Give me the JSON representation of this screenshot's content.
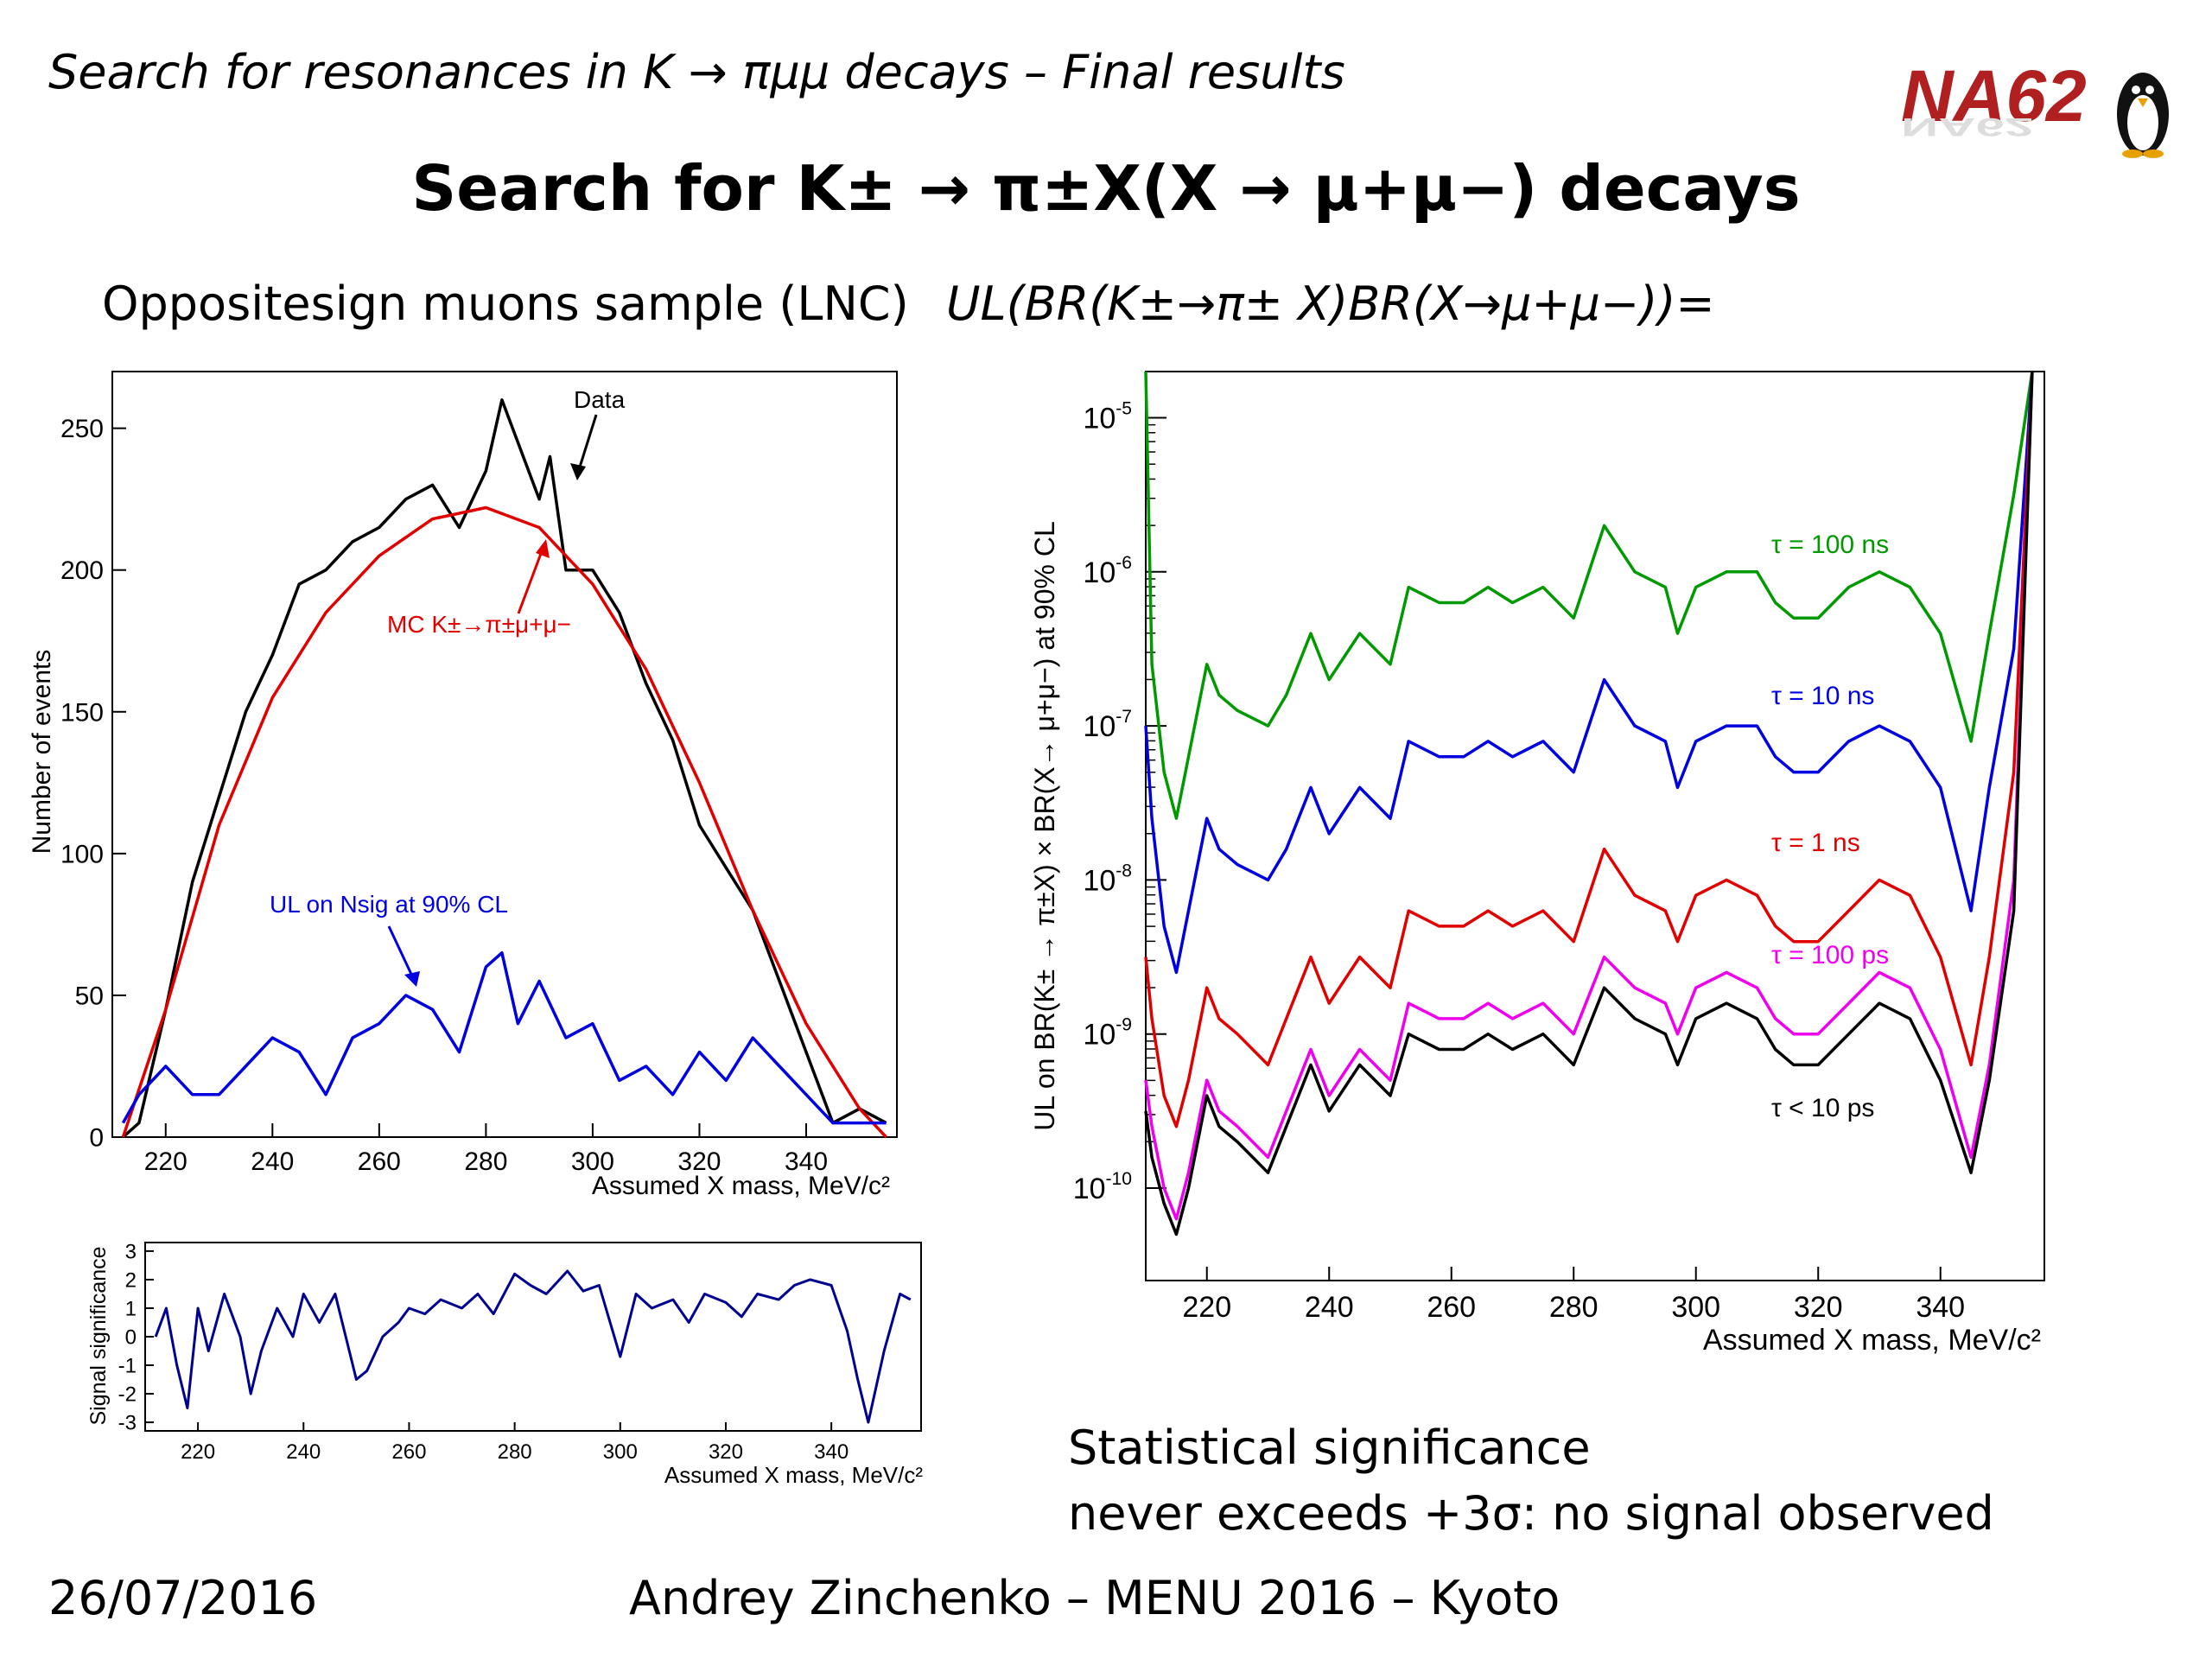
{
  "header": {
    "text": "Search for resonances in K → πμμ decays – Final results"
  },
  "logo": {
    "text": "NA62"
  },
  "title": "Search for K± → π±X(X → μ+μ−) decays",
  "left_caption": "Oppositesign muons sample (LNC)",
  "right_caption": "UL(BR(K±→π± X)BR(X→μ+μ−))=",
  "conclusion": {
    "line1": "Statistical significance",
    "line2": "never exceeds +3σ: no signal observed"
  },
  "footer": {
    "date": "26/07/2016",
    "center": "Andrey Zinchenko – MENU 2016 – Kyoto"
  },
  "colors": {
    "black": "#000000",
    "red": "#e00000",
    "blue": "#0000e0",
    "green": "#009900",
    "magenta": "#ee00ee",
    "navy": "#000090"
  },
  "chart_data": [
    {
      "id": "main",
      "type": "line",
      "xlabel": "Assumed X mass, MeV/c²",
      "ylabel": "Number of events",
      "xlim": [
        210,
        357
      ],
      "ylim": [
        0,
        270
      ],
      "xticks": [
        220,
        240,
        260,
        280,
        300,
        320,
        340
      ],
      "yticks": [
        0,
        50,
        100,
        150,
        200,
        250
      ],
      "annotations": [
        "Data",
        "MC K±→π±μ+μ−",
        "UL on Nsig at 90% CL"
      ],
      "series": [
        {
          "name": "Data",
          "color": "#000000",
          "x": [
            212,
            215,
            220,
            225,
            230,
            235,
            240,
            245,
            250,
            255,
            260,
            265,
            270,
            275,
            280,
            283,
            286,
            290,
            292,
            295,
            300,
            305,
            310,
            315,
            320,
            325,
            330,
            335,
            340,
            345,
            350,
            355
          ],
          "y": [
            0,
            5,
            45,
            90,
            120,
            150,
            170,
            195,
            200,
            210,
            215,
            225,
            230,
            215,
            235,
            260,
            245,
            225,
            240,
            200,
            200,
            185,
            160,
            140,
            110,
            95,
            80,
            55,
            30,
            5,
            10,
            5
          ]
        },
        {
          "name": "MC K±→π±μ+μ−",
          "color": "#e00000",
          "x": [
            212,
            220,
            230,
            240,
            250,
            260,
            270,
            280,
            290,
            300,
            310,
            320,
            330,
            340,
            350,
            355
          ],
          "y": [
            0,
            45,
            110,
            155,
            185,
            205,
            218,
            222,
            215,
            195,
            165,
            125,
            80,
            40,
            10,
            0
          ]
        },
        {
          "name": "UL on Nsig at 90% CL",
          "color": "#0000e0",
          "x": [
            212,
            215,
            220,
            225,
            230,
            235,
            240,
            245,
            250,
            255,
            260,
            265,
            270,
            275,
            280,
            283,
            286,
            290,
            295,
            300,
            305,
            310,
            315,
            320,
            325,
            330,
            335,
            340,
            345,
            350,
            355
          ],
          "y": [
            5,
            15,
            25,
            15,
            15,
            25,
            35,
            30,
            15,
            35,
            40,
            50,
            45,
            30,
            60,
            65,
            40,
            55,
            35,
            40,
            20,
            25,
            15,
            30,
            20,
            35,
            25,
            15,
            5,
            5,
            5
          ]
        }
      ]
    },
    {
      "id": "signif",
      "type": "line",
      "xlabel": "Assumed X mass, MeV/c²",
      "ylabel": "Signal significance",
      "xlim": [
        210,
        357
      ],
      "ylim": [
        -3.3,
        3.3
      ],
      "xticks": [
        220,
        240,
        260,
        280,
        300,
        320,
        340
      ],
      "yticks": [
        -3,
        -2,
        -1,
        0,
        1,
        2,
        3
      ],
      "series": [
        {
          "name": "",
          "color": "#000090",
          "x": [
            212,
            214,
            216,
            218,
            220,
            222,
            225,
            228,
            230,
            232,
            235,
            238,
            240,
            243,
            246,
            250,
            252,
            255,
            258,
            260,
            263,
            266,
            270,
            273,
            276,
            280,
            283,
            286,
            290,
            293,
            296,
            300,
            303,
            306,
            310,
            313,
            316,
            320,
            323,
            326,
            330,
            333,
            336,
            340,
            343,
            345,
            347,
            350,
            353,
            355
          ],
          "y": [
            0,
            1,
            -1,
            -2.5,
            1,
            -0.5,
            1.5,
            0,
            -2,
            -0.5,
            1,
            0,
            1.5,
            0.5,
            1.5,
            -1.5,
            -1.2,
            0,
            0.5,
            1,
            0.8,
            1.3,
            1.0,
            1.5,
            0.8,
            2.2,
            1.8,
            1.5,
            2.3,
            1.6,
            1.8,
            -0.7,
            1.5,
            1.0,
            1.3,
            0.5,
            1.5,
            1.2,
            0.7,
            1.5,
            1.3,
            1.8,
            2.0,
            1.8,
            0.2,
            -1.5,
            -3.0,
            -0.5,
            1.5,
            1.3
          ]
        }
      ]
    },
    {
      "id": "ul",
      "type": "line",
      "xlabel": "Assumed X mass, MeV/c²",
      "ylabel": "UL on BR(K± → π±X) × BR(X→ μ+μ−) at 90% CL",
      "xlim": [
        210,
        357
      ],
      "ylim_log10": [
        -10.6,
        -4.7
      ],
      "log_y": true,
      "xticks": [
        220,
        240,
        260,
        280,
        300,
        320,
        340
      ],
      "ytick_exponents": [
        -10,
        -9,
        -8,
        -7,
        -6,
        -5
      ],
      "series": [
        {
          "name": "τ = 100 ns",
          "color": "#009900",
          "x": [
            210,
            211,
            213,
            215,
            217,
            220,
            222,
            225,
            230,
            233,
            237,
            240,
            245,
            250,
            253,
            258,
            262,
            266,
            270,
            275,
            280,
            285,
            290,
            295,
            297,
            300,
            305,
            310,
            313,
            316,
            320,
            325,
            330,
            335,
            340,
            345,
            348,
            352,
            355
          ],
          "y": [
            -4.7,
            -6.6,
            -7.3,
            -7.6,
            -7.2,
            -6.6,
            -6.8,
            -6.9,
            -7.0,
            -6.8,
            -6.4,
            -6.7,
            -6.4,
            -6.6,
            -6.1,
            -6.2,
            -6.2,
            -6.1,
            -6.2,
            -6.1,
            -6.3,
            -5.7,
            -6.0,
            -6.1,
            -6.4,
            -6.1,
            -6.0,
            -6.0,
            -6.2,
            -6.3,
            -6.3,
            -6.1,
            -6.0,
            -6.1,
            -6.4,
            -7.1,
            -6.4,
            -5.5,
            -4.7
          ]
        },
        {
          "name": "τ = 10 ns",
          "color": "#0000e0",
          "x": [
            210,
            211,
            213,
            215,
            217,
            220,
            222,
            225,
            230,
            233,
            237,
            240,
            245,
            250,
            253,
            258,
            262,
            266,
            270,
            275,
            280,
            285,
            290,
            295,
            297,
            300,
            305,
            310,
            313,
            316,
            320,
            325,
            330,
            335,
            340,
            345,
            348,
            352,
            355
          ],
          "y": [
            -7.0,
            -7.6,
            -8.3,
            -8.6,
            -8.2,
            -7.6,
            -7.8,
            -7.9,
            -8.0,
            -7.8,
            -7.4,
            -7.7,
            -7.4,
            -7.6,
            -7.1,
            -7.2,
            -7.2,
            -7.1,
            -7.2,
            -7.1,
            -7.3,
            -6.7,
            -7.0,
            -7.1,
            -7.4,
            -7.1,
            -7.0,
            -7.0,
            -7.2,
            -7.3,
            -7.3,
            -7.1,
            -7.0,
            -7.1,
            -7.4,
            -8.2,
            -7.4,
            -6.5,
            -4.7
          ]
        },
        {
          "name": "τ = 1 ns",
          "color": "#e00000",
          "x": [
            210,
            211,
            213,
            215,
            217,
            220,
            222,
            225,
            230,
            233,
            237,
            240,
            245,
            250,
            253,
            258,
            262,
            266,
            270,
            275,
            280,
            285,
            290,
            295,
            297,
            300,
            305,
            310,
            313,
            316,
            320,
            325,
            330,
            335,
            340,
            345,
            348,
            352,
            355
          ],
          "y": [
            -8.5,
            -8.9,
            -9.4,
            -9.6,
            -9.3,
            -8.7,
            -8.9,
            -9.0,
            -9.2,
            -8.9,
            -8.5,
            -8.8,
            -8.5,
            -8.7,
            -8.2,
            -8.3,
            -8.3,
            -8.2,
            -8.3,
            -8.2,
            -8.4,
            -7.8,
            -8.1,
            -8.2,
            -8.4,
            -8.1,
            -8.0,
            -8.1,
            -8.3,
            -8.4,
            -8.4,
            -8.2,
            -8.0,
            -8.1,
            -8.5,
            -9.2,
            -8.5,
            -7.3,
            -4.7
          ]
        },
        {
          "name": "τ = 100 ps",
          "color": "#ee00ee",
          "x": [
            210,
            211,
            213,
            215,
            217,
            220,
            222,
            225,
            230,
            233,
            237,
            240,
            245,
            250,
            253,
            258,
            262,
            266,
            270,
            275,
            280,
            285,
            290,
            295,
            297,
            300,
            305,
            310,
            313,
            316,
            320,
            325,
            330,
            335,
            340,
            345,
            348,
            352,
            355
          ],
          "y": [
            -9.3,
            -9.6,
            -10.0,
            -10.2,
            -9.9,
            -9.3,
            -9.5,
            -9.6,
            -9.8,
            -9.5,
            -9.1,
            -9.4,
            -9.1,
            -9.3,
            -8.8,
            -8.9,
            -8.9,
            -8.8,
            -8.9,
            -8.8,
            -9.0,
            -8.5,
            -8.7,
            -8.8,
            -9.0,
            -8.7,
            -8.6,
            -8.7,
            -8.9,
            -9.0,
            -9.0,
            -8.8,
            -8.6,
            -8.7,
            -9.1,
            -9.8,
            -9.2,
            -8.0,
            -4.7
          ]
        },
        {
          "name": "τ < 10 ps",
          "color": "#000000",
          "x": [
            210,
            211,
            213,
            215,
            217,
            220,
            222,
            225,
            230,
            233,
            237,
            240,
            245,
            250,
            253,
            258,
            262,
            266,
            270,
            275,
            280,
            285,
            290,
            295,
            297,
            300,
            305,
            310,
            313,
            316,
            320,
            325,
            330,
            335,
            340,
            345,
            348,
            352,
            355
          ],
          "y": [
            -9.5,
            -9.8,
            -10.1,
            -10.3,
            -10.0,
            -9.4,
            -9.6,
            -9.7,
            -9.9,
            -9.6,
            -9.2,
            -9.5,
            -9.2,
            -9.4,
            -9.0,
            -9.1,
            -9.1,
            -9.0,
            -9.1,
            -9.0,
            -9.2,
            -8.7,
            -8.9,
            -9.0,
            -9.2,
            -8.9,
            -8.8,
            -8.9,
            -9.1,
            -9.2,
            -9.2,
            -9.0,
            -8.8,
            -8.9,
            -9.3,
            -9.9,
            -9.3,
            -8.2,
            -4.7
          ]
        }
      ]
    }
  ]
}
